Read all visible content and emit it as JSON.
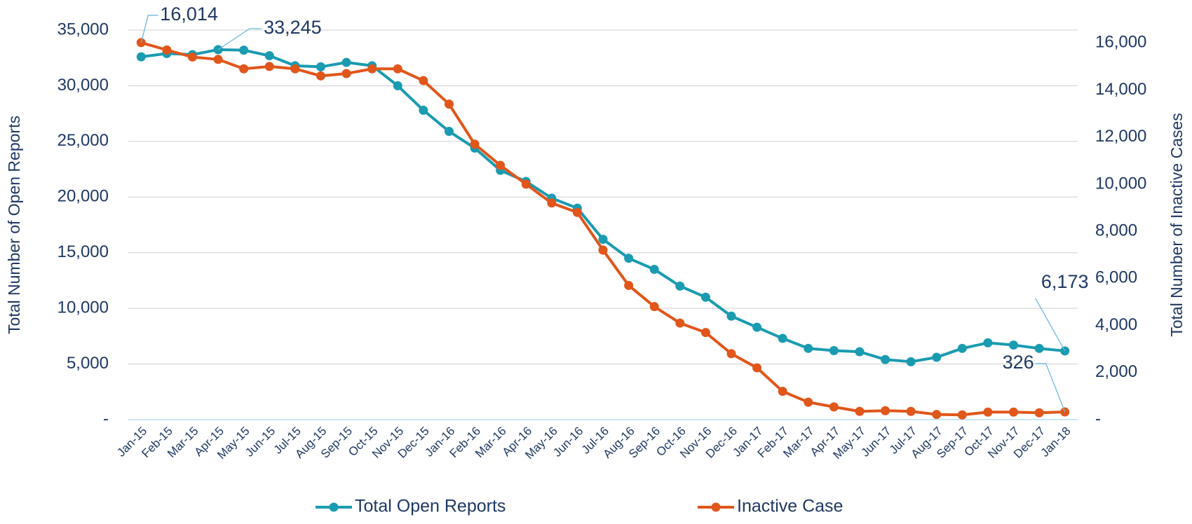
{
  "chart_data": {
    "type": "line",
    "categories": [
      "Jan-15",
      "Feb-15",
      "Mar-15",
      "Apr-15",
      "May-15",
      "Jun-15",
      "Jul-15",
      "Aug-15",
      "Sep-15",
      "Oct-15",
      "Nov-15",
      "Dec-15",
      "Jan-16",
      "Feb-16",
      "Mar-16",
      "Apr-16",
      "May-16",
      "Jun-16",
      "Jul-16",
      "Aug-16",
      "Sep-16",
      "Oct-16",
      "Nov-16",
      "Dec-16",
      "Jan-17",
      "Feb-17",
      "Mar-17",
      "Apr-17",
      "May-17",
      "Jun-17",
      "Jul-17",
      "Aug-17",
      "Sep-17",
      "Oct-17",
      "Nov-17",
      "Dec-17",
      "Jan-18"
    ],
    "series": [
      {
        "name": "Total Open Reports",
        "color": "#1a9bb0",
        "values": [
          32600,
          32900,
          32800,
          33245,
          33200,
          32700,
          31800,
          31700,
          32100,
          31800,
          30000,
          27800,
          25900,
          24400,
          22400,
          21400,
          19900,
          19000,
          16200,
          14500,
          13500,
          12000,
          11000,
          9300,
          8300,
          7300,
          6400,
          6200,
          6100,
          5400,
          5200,
          5600,
          6400,
          6900,
          6700,
          6400,
          6173
        ],
        "value_labels": [
          null,
          null,
          null,
          "33,245",
          null,
          null,
          null,
          null,
          null,
          null,
          null,
          null,
          null,
          null,
          null,
          null,
          null,
          null,
          null,
          null,
          null,
          null,
          null,
          null,
          null,
          null,
          null,
          null,
          null,
          null,
          null,
          null,
          null,
          null,
          null,
          null,
          "6,173"
        ]
      },
      {
        "name": "Inactive Case",
        "color": "#e0561b",
        "axis": "y2",
        "values": [
          16014,
          15700,
          15400,
          15300,
          14900,
          15000,
          14900,
          14600,
          14700,
          14900,
          14900,
          14400,
          13400,
          11700,
          10800,
          10000,
          9200,
          8800,
          7200,
          5700,
          4800,
          4100,
          3700,
          2800,
          2200,
          1200,
          740,
          540,
          350,
          380,
          350,
          220,
          200,
          320,
          320,
          290,
          326
        ],
        "value_labels": [
          "16,014",
          null,
          null,
          null,
          null,
          null,
          null,
          null,
          null,
          null,
          null,
          null,
          null,
          null,
          null,
          null,
          null,
          null,
          null,
          null,
          null,
          null,
          null,
          null,
          null,
          null,
          null,
          null,
          null,
          null,
          null,
          null,
          null,
          null,
          null,
          null,
          "326"
        ]
      }
    ],
    "y_label": "Total Number of Open Reports",
    "y2_label": "Total Number of Inactive Cases",
    "ylim": [
      0,
      35000
    ],
    "yticks": [
      {
        "value": 0,
        "label": "-"
      },
      {
        "value": 5000,
        "label": "5,000"
      },
      {
        "value": 10000,
        "label": "10,000"
      },
      {
        "value": 15000,
        "label": "15,000"
      },
      {
        "value": 20000,
        "label": "20,000"
      },
      {
        "value": 25000,
        "label": "25,000"
      },
      {
        "value": 30000,
        "label": "30,000"
      },
      {
        "value": 35000,
        "label": "35,000"
      }
    ],
    "y2lim": [
      0,
      16544
    ],
    "y2ticks": [
      {
        "value": 0,
        "label": "-"
      },
      {
        "value": 2000,
        "label": "2,000"
      },
      {
        "value": 4000,
        "label": "4,000"
      },
      {
        "value": 6000,
        "label": "6,000"
      },
      {
        "value": 8000,
        "label": "8,000"
      },
      {
        "value": 10000,
        "label": "10,000"
      },
      {
        "value": 12000,
        "label": "12,000"
      },
      {
        "value": 14000,
        "label": "14,000"
      },
      {
        "value": 16000,
        "label": "16,000"
      }
    ],
    "grid": true,
    "legend": "bottom"
  }
}
